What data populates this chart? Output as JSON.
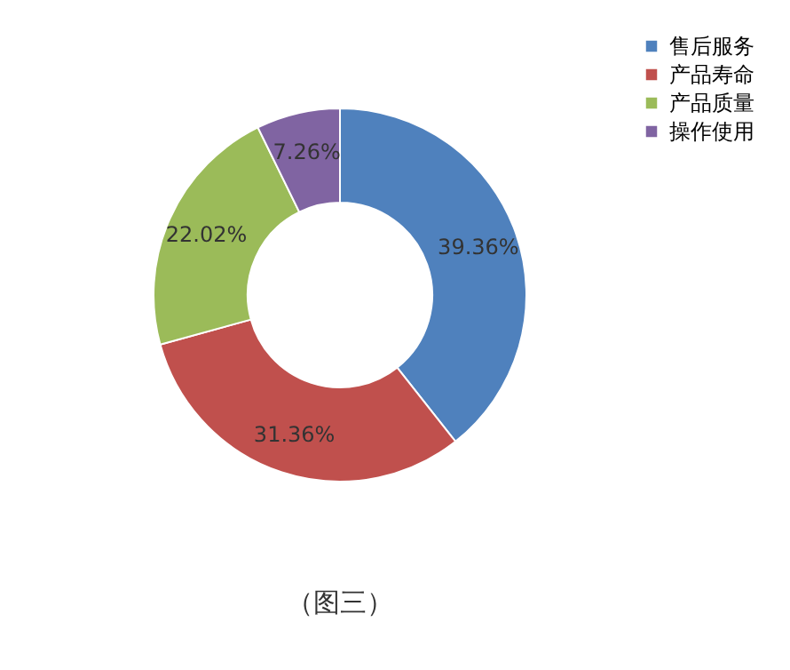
{
  "chart_data": {
    "type": "donut",
    "categories": [
      "售后服务",
      "产品寿命",
      "产品质量",
      "操作使用"
    ],
    "values": [
      39.36,
      31.36,
      22.02,
      7.26
    ],
    "colors": [
      "#4f81bd",
      "#c0504d",
      "#9bbb59",
      "#8064a2"
    ],
    "value_labels": [
      "39.36%",
      "31.36%",
      "22.02%",
      "7.26%"
    ],
    "legend": "right",
    "annotations": [
      "（图三）"
    ]
  }
}
